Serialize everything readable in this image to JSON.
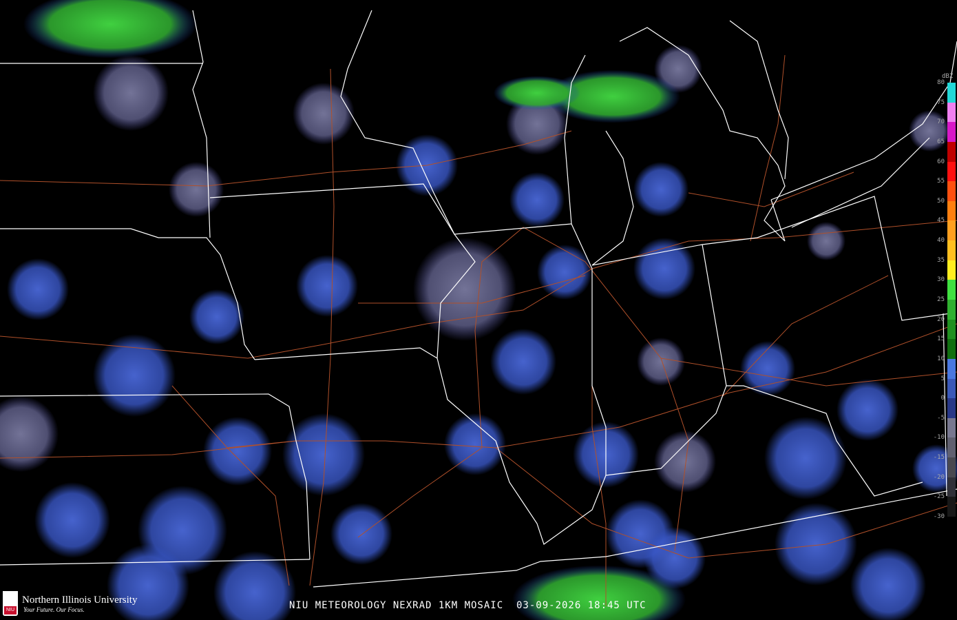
{
  "title": "NIU METEOROLOGY NEXRAD 1KM MOSAIC  03-09-2026 18:45 UTC",
  "logo": {
    "name": "Northern Illinois University",
    "tagline": "Your Future. Our Focus.",
    "mark": "NIU"
  },
  "legend": {
    "unit": "dBZ",
    "ticks": [
      "80",
      "75",
      "70",
      "65",
      "60",
      "55",
      "50",
      "45",
      "40",
      "35",
      "30",
      "25",
      "20",
      "15",
      "10",
      "5",
      "0",
      "-5",
      "-10",
      "-15",
      "-20",
      "-25",
      "-30"
    ],
    "bands": [
      {
        "from": 75,
        "to": 80,
        "color": "#22d8d8"
      },
      {
        "from": 70,
        "to": 75,
        "color": "#f080f0"
      },
      {
        "from": 65,
        "to": 70,
        "color": "#d818c8"
      },
      {
        "from": 60,
        "to": 65,
        "color": "#c00000"
      },
      {
        "from": 55,
        "to": 60,
        "color": "#ff1010"
      },
      {
        "from": 50,
        "to": 55,
        "color": "#ff5010"
      },
      {
        "from": 45,
        "to": 50,
        "color": "#ff8010"
      },
      {
        "from": 40,
        "to": 45,
        "color": "#ffa020"
      },
      {
        "from": 35,
        "to": 40,
        "color": "#ffc020"
      },
      {
        "from": 30,
        "to": 35,
        "color": "#ffee20"
      },
      {
        "from": 25,
        "to": 30,
        "color": "#40e040"
      },
      {
        "from": 20,
        "to": 25,
        "color": "#30b030"
      },
      {
        "from": 15,
        "to": 20,
        "color": "#209020"
      },
      {
        "from": 10,
        "to": 15,
        "color": "#107010"
      },
      {
        "from": 5,
        "to": 10,
        "color": "#4a78e0"
      },
      {
        "from": 0,
        "to": 5,
        "color": "#3a58b8"
      },
      {
        "from": -5,
        "to": 0,
        "color": "#283888"
      },
      {
        "from": -10,
        "to": -5,
        "color": "#787890"
      },
      {
        "from": -15,
        "to": -10,
        "color": "#606070"
      },
      {
        "from": -20,
        "to": -15,
        "color": "#484850"
      },
      {
        "from": -25,
        "to": -20,
        "color": "#303038"
      },
      {
        "from": -30,
        "to": -25,
        "color": "#181818"
      }
    ]
  },
  "colors": {
    "boundary": "#ffffff",
    "roads": "#b0502a",
    "clear_air": "#7a7a9a",
    "light_precip": "#4060d0",
    "moderate_precip": "#30c030"
  }
}
